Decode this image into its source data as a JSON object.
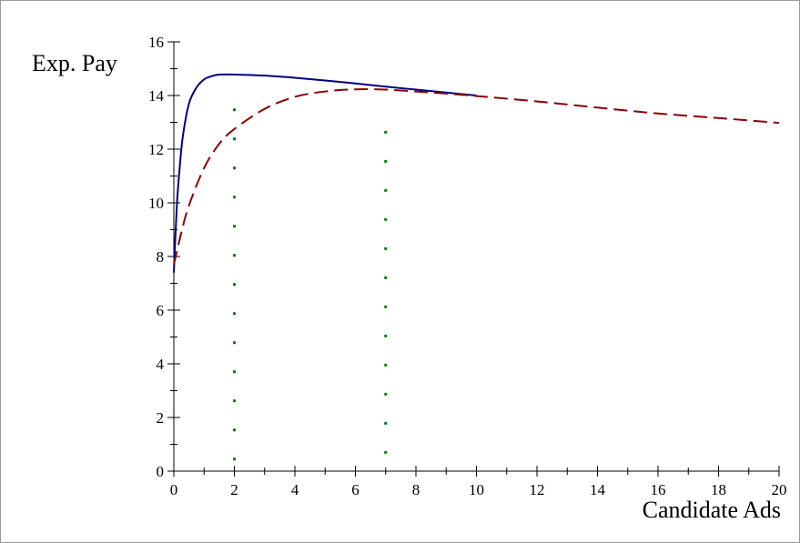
{
  "chart_data": {
    "type": "line",
    "title": "",
    "xlabel": "Candidate Ads",
    "ylabel": "Exp. Pay",
    "xlim": [
      0,
      20
    ],
    "ylim": [
      0,
      16
    ],
    "x_ticks": [
      0,
      2,
      4,
      6,
      8,
      10,
      12,
      14,
      16,
      18,
      20
    ],
    "y_ticks": [
      0,
      2,
      4,
      6,
      8,
      10,
      12,
      14,
      16
    ],
    "grid": false,
    "legend": "none",
    "series": [
      {
        "style": "solid",
        "color": "#000080",
        "x": [
          0,
          0.1,
          0.2,
          0.3,
          0.5,
          0.75,
          1,
          1.25,
          1.5,
          2,
          3,
          4,
          5,
          6,
          7,
          8,
          9,
          10
        ],
        "y": [
          7.4,
          9.9,
          11.4,
          12.5,
          13.7,
          14.3,
          14.6,
          14.72,
          14.78,
          14.78,
          14.74,
          14.66,
          14.56,
          14.45,
          14.33,
          14.22,
          14.11,
          14.0
        ]
      },
      {
        "style": "dashed",
        "color": "#8b0000",
        "x": [
          0,
          0.25,
          0.5,
          1,
          1.5,
          2,
          3,
          4,
          5,
          6,
          7,
          8,
          9,
          10,
          12,
          14,
          16,
          18,
          20
        ],
        "y": [
          7.7,
          8.9,
          9.9,
          11.3,
          12.2,
          12.75,
          13.5,
          13.95,
          14.15,
          14.23,
          14.22,
          14.15,
          14.07,
          13.98,
          13.78,
          13.55,
          13.33,
          13.16,
          12.98
        ]
      },
      {
        "style": "dotted",
        "color": "#008000",
        "x": [
          2,
          2
        ],
        "y": [
          0.4,
          13.8
        ]
      },
      {
        "style": "dotted",
        "color": "#008000",
        "x": [
          7,
          7
        ],
        "y": [
          0.65,
          13.2
        ]
      }
    ]
  }
}
